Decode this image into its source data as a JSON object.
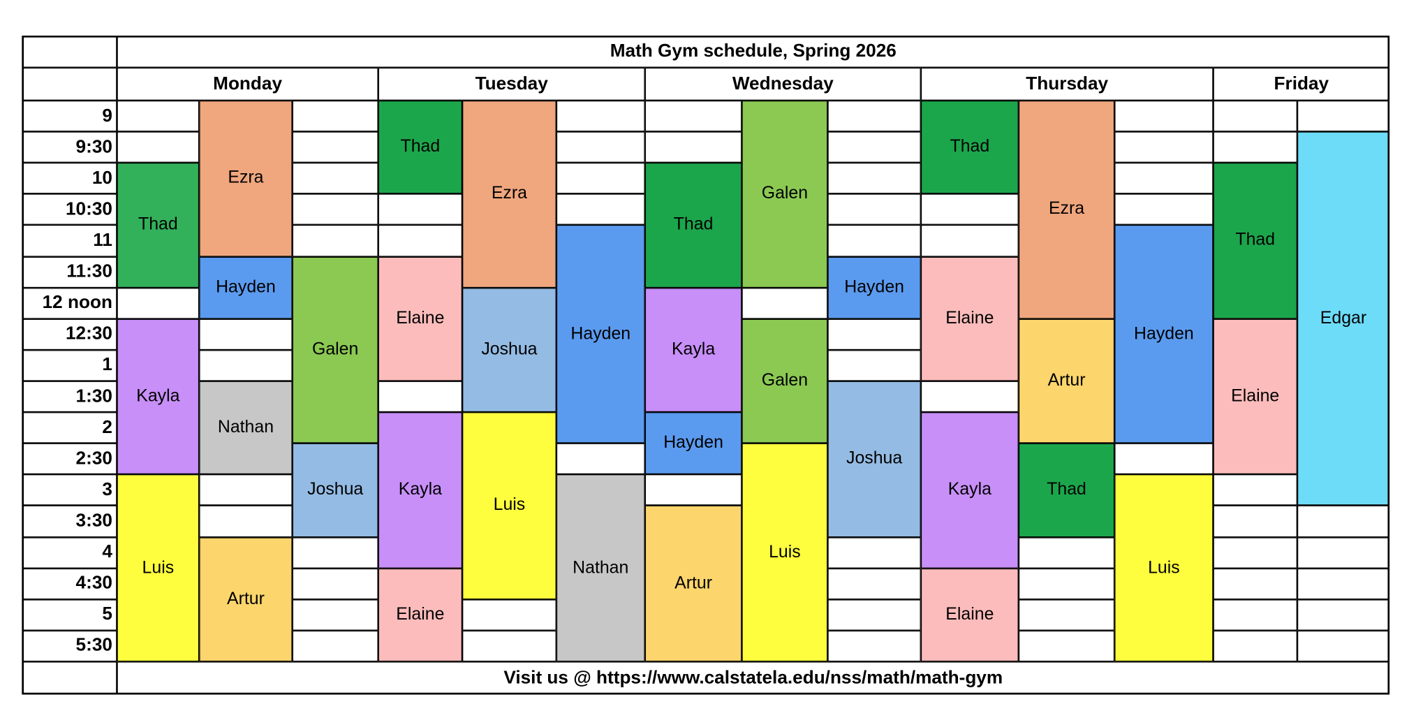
{
  "title": "Math Gym schedule, Spring 2026",
  "footer": "Visit us  @ https://www.calstatela.edu/nss/math/math-gym",
  "times": [
    "9",
    "9:30",
    "10",
    "10:30",
    "11",
    "11:30",
    "12 noon",
    "12:30",
    "1",
    "1:30",
    "2",
    "2:30",
    "3",
    "3:30",
    "4",
    "4:30",
    "5",
    "5:30"
  ],
  "colors": {
    "Thad": "#1ca64c",
    "Thad-monday": "#32b05a",
    "Ezra": "#f0a77e",
    "Hayden": "#5b9bef",
    "Galen": "#8bc953",
    "Elaine": "#fdbcbc",
    "Joshua": "#94bbe3",
    "Kayla": "#c78ff7",
    "Nathan": "#c7c7c7",
    "Luis": "#fefe3f",
    "Artur": "#fcd56c",
    "Edgar": "#6ddcf8"
  },
  "days": [
    {
      "name": "Monday",
      "columns": [
        [
          {
            "name": "Thad",
            "start": "10",
            "end": "12 noon",
            "color_key": "Thad-monday"
          },
          {
            "name": "Kayla",
            "start": "12:30",
            "end": "3"
          },
          {
            "name": "Luis",
            "start": "3",
            "end": "6"
          }
        ],
        [
          {
            "name": "Ezra",
            "start": "9",
            "end": "11:30"
          },
          {
            "name": "Hayden",
            "start": "11:30",
            "end": "12:30"
          },
          {
            "name": "Nathan",
            "start": "1:30",
            "end": "3"
          },
          {
            "name": "Artur",
            "start": "4",
            "end": "6"
          }
        ],
        [
          {
            "name": "Galen",
            "start": "11:30",
            "end": "2:30"
          },
          {
            "name": "Joshua",
            "start": "2:30",
            "end": "4"
          }
        ]
      ]
    },
    {
      "name": "Tuesday",
      "columns": [
        [
          {
            "name": "Thad",
            "start": "9",
            "end": "10:30"
          },
          {
            "name": "Elaine",
            "start": "11:30",
            "end": "1:30"
          },
          {
            "name": "Kayla",
            "start": "2",
            "end": "4:30"
          },
          {
            "name": "Elaine",
            "start": "4:30",
            "end": "6"
          }
        ],
        [
          {
            "name": "Ezra",
            "start": "9",
            "end": "12 noon"
          },
          {
            "name": "Joshua",
            "start": "12 noon",
            "end": "2"
          },
          {
            "name": "Luis",
            "start": "2",
            "end": "5"
          }
        ],
        [
          {
            "name": "Hayden",
            "start": "11",
            "end": "2:30"
          },
          {
            "name": "Nathan",
            "start": "3",
            "end": "6"
          }
        ]
      ]
    },
    {
      "name": "Wednesday",
      "columns": [
        [
          {
            "name": "Thad",
            "start": "10",
            "end": "12 noon"
          },
          {
            "name": "Kayla",
            "start": "12 noon",
            "end": "2"
          },
          {
            "name": "Hayden",
            "start": "2",
            "end": "3"
          },
          {
            "name": "Artur",
            "start": "3:30",
            "end": "6"
          }
        ],
        [
          {
            "name": "Galen",
            "start": "9",
            "end": "12 noon"
          },
          {
            "name": "Galen",
            "start": "12:30",
            "end": "2:30"
          },
          {
            "name": "Luis",
            "start": "2:30",
            "end": "6"
          }
        ],
        [
          {
            "name": "Hayden",
            "start": "11:30",
            "end": "12:30"
          },
          {
            "name": "Joshua",
            "start": "1:30",
            "end": "4"
          }
        ]
      ]
    },
    {
      "name": "Thursday",
      "columns": [
        [
          {
            "name": "Thad",
            "start": "9",
            "end": "10:30"
          },
          {
            "name": "Elaine",
            "start": "11:30",
            "end": "1:30"
          },
          {
            "name": "Kayla",
            "start": "2",
            "end": "4:30"
          },
          {
            "name": "Elaine",
            "start": "4:30",
            "end": "6"
          }
        ],
        [
          {
            "name": "Ezra",
            "start": "9",
            "end": "12:30"
          },
          {
            "name": "Artur",
            "start": "12:30",
            "end": "2:30"
          },
          {
            "name": "Thad",
            "start": "2:30",
            "end": "4"
          }
        ],
        [
          {
            "name": "Hayden",
            "start": "11",
            "end": "2:30"
          },
          {
            "name": "Luis",
            "start": "3",
            "end": "6"
          }
        ]
      ]
    },
    {
      "name": "Friday",
      "columns": [
        [
          {
            "name": "Thad",
            "start": "10",
            "end": "12:30"
          },
          {
            "name": "Elaine",
            "start": "12:30",
            "end": "3"
          }
        ],
        [
          {
            "name": "Edgar",
            "start": "9:30",
            "end": "3:30"
          }
        ]
      ]
    }
  ]
}
